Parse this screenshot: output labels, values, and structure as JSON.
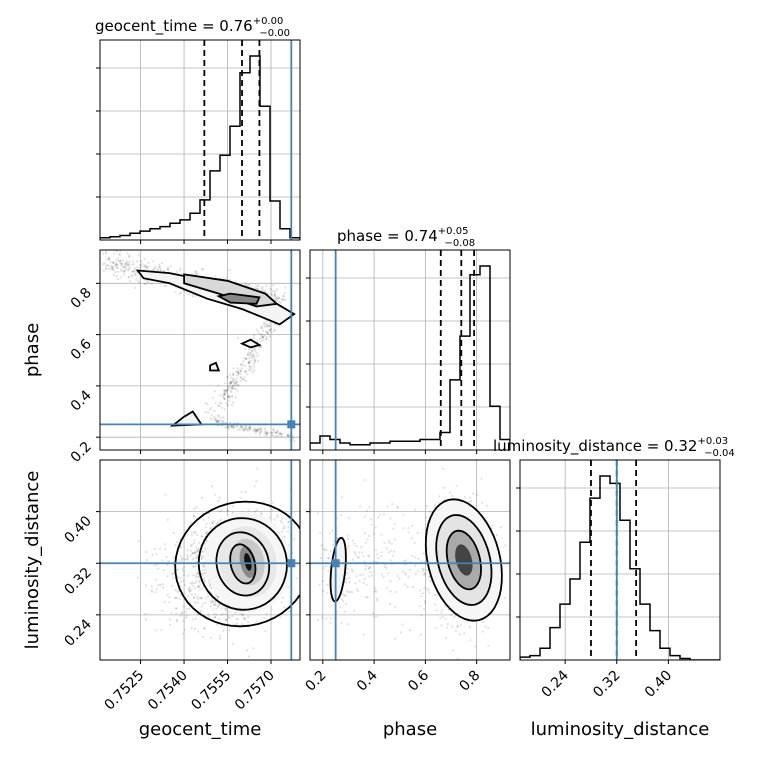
{
  "figure": {
    "type": "corner plot"
  },
  "colors": {
    "truth": "#4682b4",
    "hist": "#000000",
    "contour": "#000000",
    "scatter": "#000000",
    "grid": "#b0b0b0"
  },
  "chart_data": {
    "type": "corner",
    "parameters": [
      "geocent_time",
      "phase",
      "luminosity_distance"
    ],
    "axis_labels": {
      "geocent_time": "geocent_time",
      "phase": "phase",
      "luminosity_distance": "luminosity_distance"
    },
    "titles": [
      {
        "param": "geocent_time",
        "prefix": "geocent_time = 0.76",
        "plus": "+0.00",
        "minus": "−0.00"
      },
      {
        "param": "phase",
        "prefix": "phase = 0.74",
        "plus": "+0.05",
        "minus": "−0.08"
      },
      {
        "param": "luminosity_distance",
        "prefix": "luminosity_distance = 0.32",
        "plus": "+0.03",
        "minus": "−0.04"
      }
    ],
    "ranges": {
      "geocent_time": [
        0.7511,
        0.758
      ],
      "phase": [
        0.15,
        0.93
      ],
      "luminosity_distance": [
        0.17,
        0.48
      ]
    },
    "ticks": {
      "geocent_time": {
        "values": [
          0.7525,
          0.754,
          0.7555,
          0.757
        ],
        "labels": [
          "0.7525",
          "0.7540",
          "0.7555",
          "0.7570"
        ]
      },
      "phase": {
        "values": [
          0.2,
          0.4,
          0.6,
          0.8
        ],
        "labels": [
          "0.2",
          "0.4",
          "0.6",
          "0.8"
        ]
      },
      "luminosity_distance": {
        "values": [
          0.24,
          0.32,
          0.4
        ],
        "labels": [
          "0.24",
          "0.32",
          "0.40"
        ]
      }
    },
    "truths": {
      "geocent_time": 0.7577,
      "phase": 0.25,
      "luminosity_distance": 0.32
    },
    "quantiles": {
      "geocent_time": [
        0.7547,
        0.756,
        0.7566
      ],
      "phase": [
        0.66,
        0.74,
        0.79
      ],
      "luminosity_distance": [
        0.28,
        0.32,
        0.35
      ]
    },
    "histograms": {
      "geocent_time": {
        "edges_range": [
          0.7511,
          0.758
        ],
        "counts": [
          2,
          3,
          4,
          6,
          8,
          10,
          12,
          15,
          18,
          24,
          36,
          62,
          76,
          102,
          150,
          165,
          120,
          35,
          10,
          2
        ]
      },
      "phase": {
        "edges_range": [
          0.15,
          0.93
        ],
        "counts": [
          4,
          8,
          6,
          4,
          3,
          3,
          4,
          4,
          5,
          5,
          5,
          6,
          6,
          10,
          40,
          65,
          100,
          105,
          25,
          6
        ]
      },
      "luminosity_distance": {
        "edges_range": [
          0.17,
          0.48
        ],
        "counts": [
          2,
          3,
          8,
          22,
          38,
          55,
          80,
          110,
          125,
          120,
          95,
          62,
          38,
          20,
          8,
          3,
          1,
          0,
          0,
          0
        ]
      }
    },
    "grid": true,
    "axis_ranges_note": "2D panels share the diagonal ranges"
  }
}
